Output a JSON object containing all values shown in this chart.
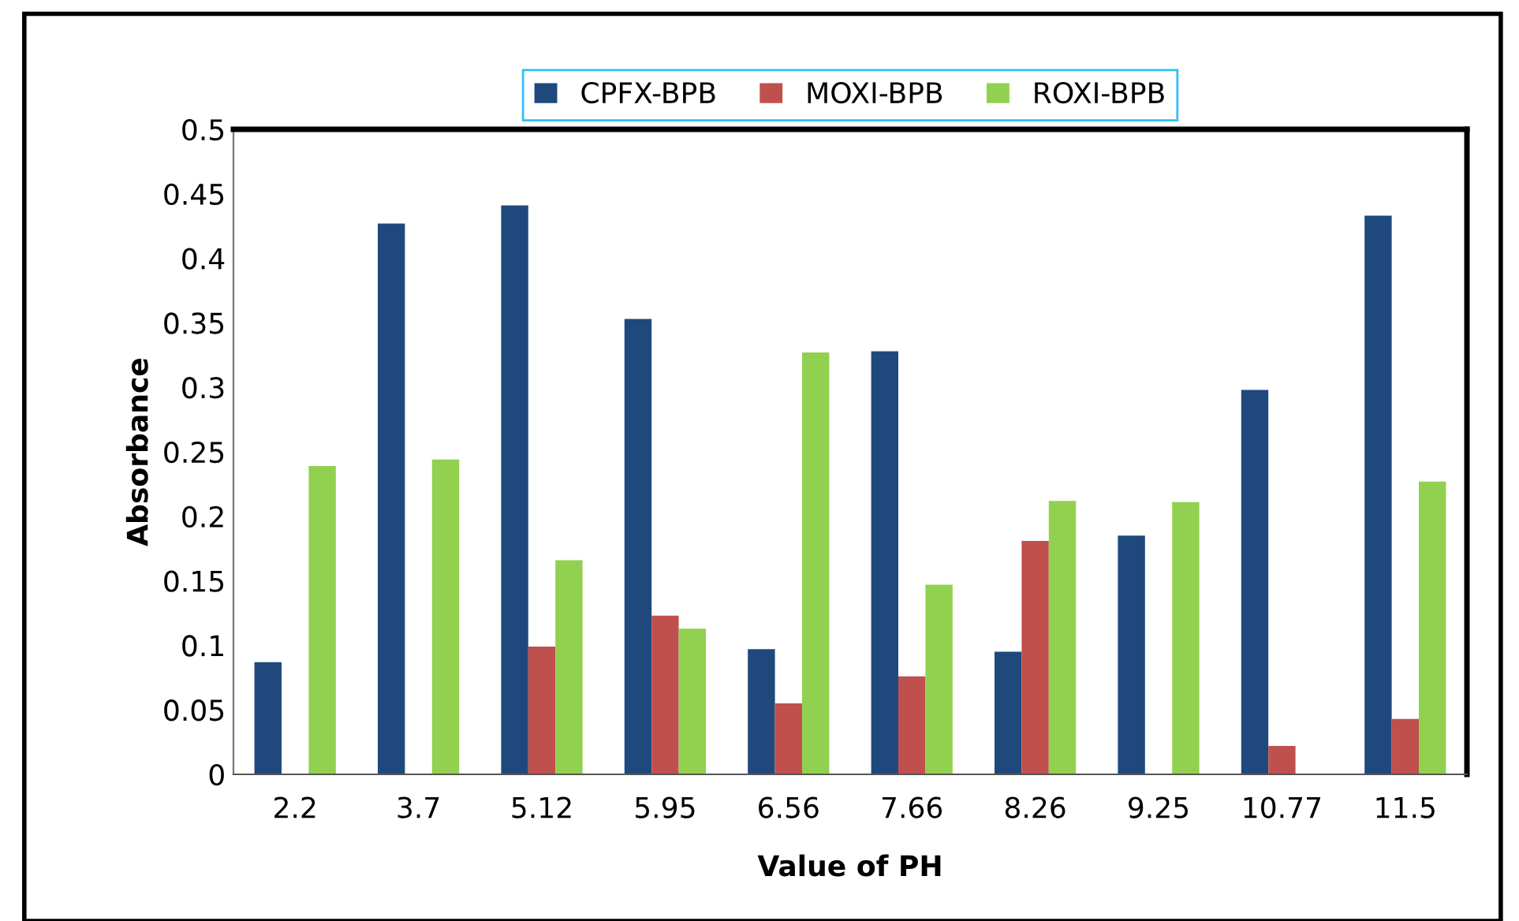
{
  "chart_data": {
    "type": "bar",
    "xlabel": "Value of PH",
    "ylabel": "Absorbance",
    "categories": [
      "2.2",
      "3.7",
      "5.12",
      "5.95",
      "6.56",
      "7.66",
      "8.26",
      "9.25",
      "10.77",
      "11.5"
    ],
    "series": [
      {
        "name": "CPFX-BPB",
        "color": "#1f497d",
        "values": [
          0.087,
          0.427,
          0.441,
          0.353,
          0.097,
          0.328,
          0.095,
          0.185,
          0.298,
          0.433
        ]
      },
      {
        "name": "MOXI-BPB",
        "color": "#c0504d",
        "values": [
          0,
          0,
          0.099,
          0.123,
          0.055,
          0.076,
          0.181,
          0,
          0.022,
          0.043
        ]
      },
      {
        "name": "ROXI-BPB",
        "color": "#92d050",
        "values": [
          0.239,
          0.244,
          0.166,
          0.113,
          0.327,
          0.147,
          0.212,
          0.211,
          0,
          0.227
        ]
      }
    ],
    "ylim": [
      0,
      0.5
    ],
    "yticks": [
      0,
      0.05,
      0.1,
      0.15,
      0.2,
      0.25,
      0.3,
      0.35,
      0.4,
      0.45,
      0.5
    ],
    "grid": false,
    "legend": "top"
  }
}
